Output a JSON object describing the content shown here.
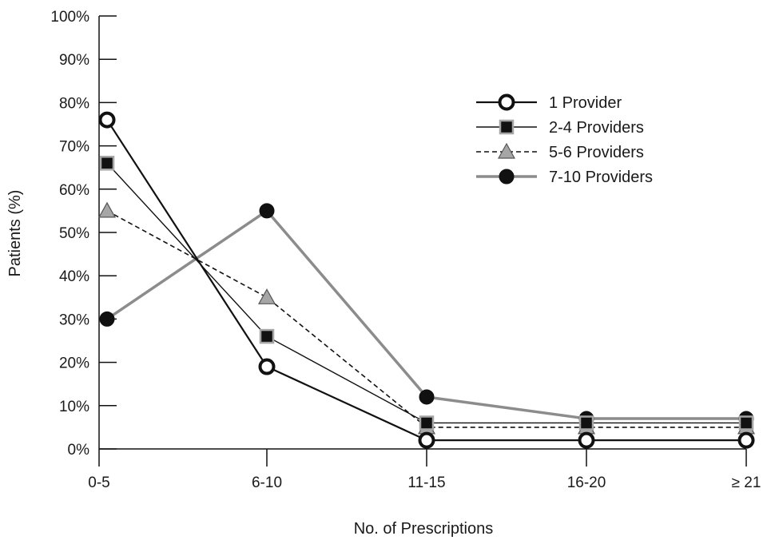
{
  "chart_data": {
    "type": "line",
    "xlabel": "No. of Prescriptions",
    "ylabel": "Patients (%)",
    "categories": [
      "0-5",
      "6-10",
      "11-15",
      "16-20",
      "≥ 21"
    ],
    "yticks": [
      "0%",
      "10%",
      "20%",
      "30%",
      "40%",
      "50%",
      "60%",
      "70%",
      "80%",
      "90%",
      "100%"
    ],
    "ylim": [
      0,
      100
    ],
    "grid": false,
    "legend_position": "top-right",
    "series": [
      {
        "name": "1 Provider",
        "values": [
          76,
          19,
          2,
          2,
          2
        ],
        "line_color": "#111111",
        "marker": "open-circle",
        "line_style": "solid"
      },
      {
        "name": "2-4 Providers",
        "values": [
          66,
          26,
          6,
          6,
          6
        ],
        "line_color": "#111111",
        "marker": "square",
        "line_style": "solid"
      },
      {
        "name": "5-6 Providers",
        "values": [
          55,
          35,
          5,
          5,
          5
        ],
        "line_color": "#111111",
        "marker": "triangle",
        "line_style": "dashed"
      },
      {
        "name": "7-10 Providers",
        "values": [
          30,
          55,
          12,
          7,
          7
        ],
        "line_color": "#8c8c8c",
        "marker": "filled-circle",
        "line_style": "solid"
      }
    ]
  }
}
